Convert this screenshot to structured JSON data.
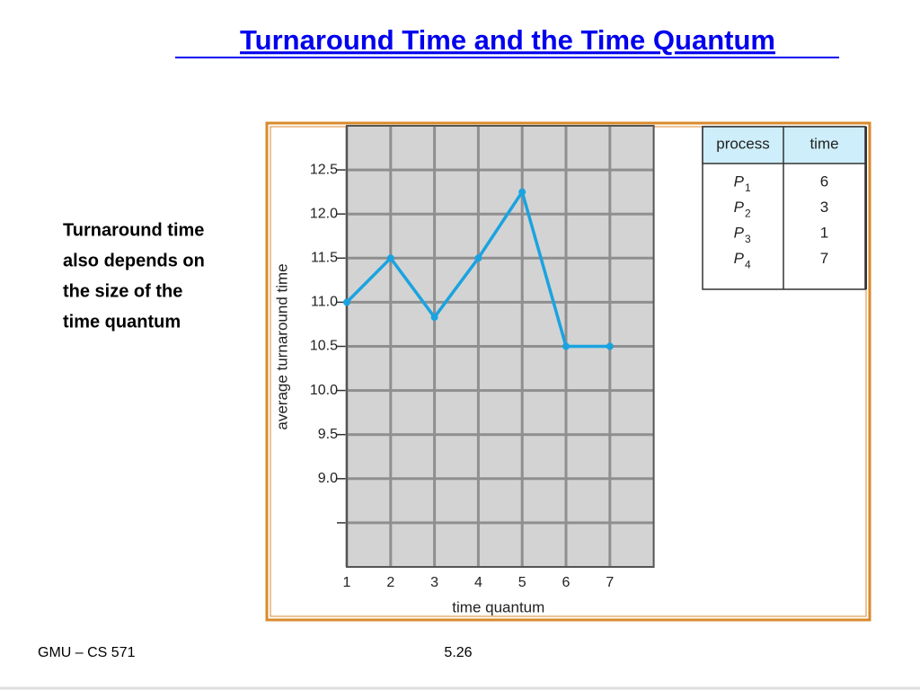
{
  "slide": {
    "title": "Turnaround Time and the Time Quantum",
    "text": [
      "Turnaround time",
      "also depends on",
      "the size of the",
      "time quantum"
    ],
    "footer_left": "GMU – CS 571",
    "page_number": "5.26"
  },
  "table": {
    "header": [
      "process",
      "time"
    ],
    "rows": [
      [
        {
          "name": "P",
          "sub": "1"
        },
        6
      ],
      [
        {
          "name": "P",
          "sub": "2"
        },
        3
      ],
      [
        {
          "name": "P",
          "sub": "3"
        },
        1
      ],
      [
        {
          "name": "P",
          "sub": "4"
        },
        7
      ]
    ]
  },
  "chart_data": {
    "type": "line",
    "x": [
      1,
      2,
      3,
      4,
      5,
      6,
      7
    ],
    "values": [
      11.0,
      11.5,
      10.83,
      11.5,
      12.25,
      10.5,
      10.5
    ],
    "color": "#1aa3e0",
    "xlabel": "time quantum",
    "ylabel": "average turnaround time",
    "xlim": [
      1,
      8
    ],
    "xticks": [
      1,
      2,
      3,
      4,
      5,
      6,
      7
    ],
    "ylim": [
      8,
      13
    ],
    "yticks": [
      {
        "value": 8.5,
        "label": null
      },
      {
        "value": 9,
        "label": "9.0"
      },
      9.5,
      {
        "value": 10,
        "label": "10.0"
      },
      10.5,
      {
        "value": 11,
        "label": "11.0"
      },
      11.5,
      {
        "value": 12,
        "label": "12.0"
      },
      12.5
    ],
    "grid": true
  }
}
